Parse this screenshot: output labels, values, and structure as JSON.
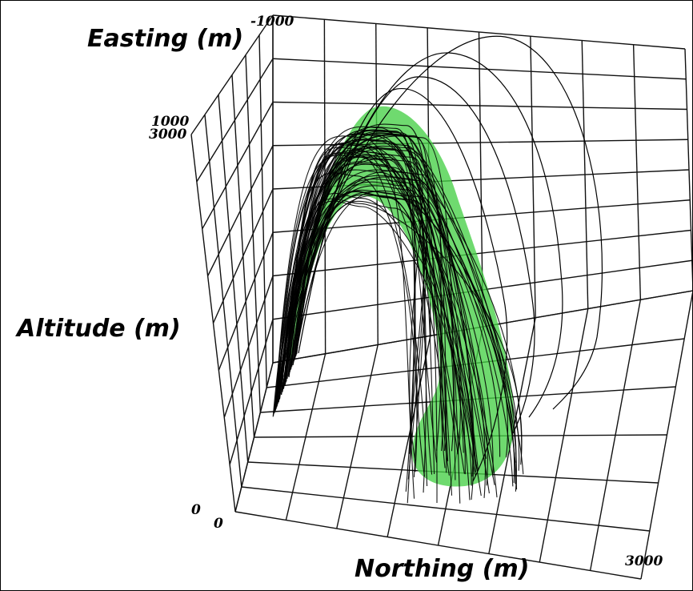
{
  "chart_data": {
    "type": "line",
    "title": "",
    "axes": {
      "easting": {
        "label": "Easting (m)",
        "ticks": [
          "-1000",
          "1000"
        ],
        "range": [
          -1000,
          1000
        ]
      },
      "northing": {
        "label": "Northing (m)",
        "ticks": [
          "0",
          "3000"
        ],
        "range": [
          0,
          3000
        ]
      },
      "altitude": {
        "label": "Altitude (m)",
        "ticks": [
          "0",
          "3000"
        ],
        "range": [
          0,
          3000
        ]
      }
    },
    "grid": true,
    "series": [
      {
        "style": "envelope",
        "color": "#4cd34c",
        "note_type": "surface"
      },
      {
        "style": "trajectories",
        "color": "#000000",
        "count": 60
      }
    ],
    "colors": {
      "grid": "#111111",
      "envelope": "#47cf47",
      "trajectory": "#000000"
    }
  }
}
